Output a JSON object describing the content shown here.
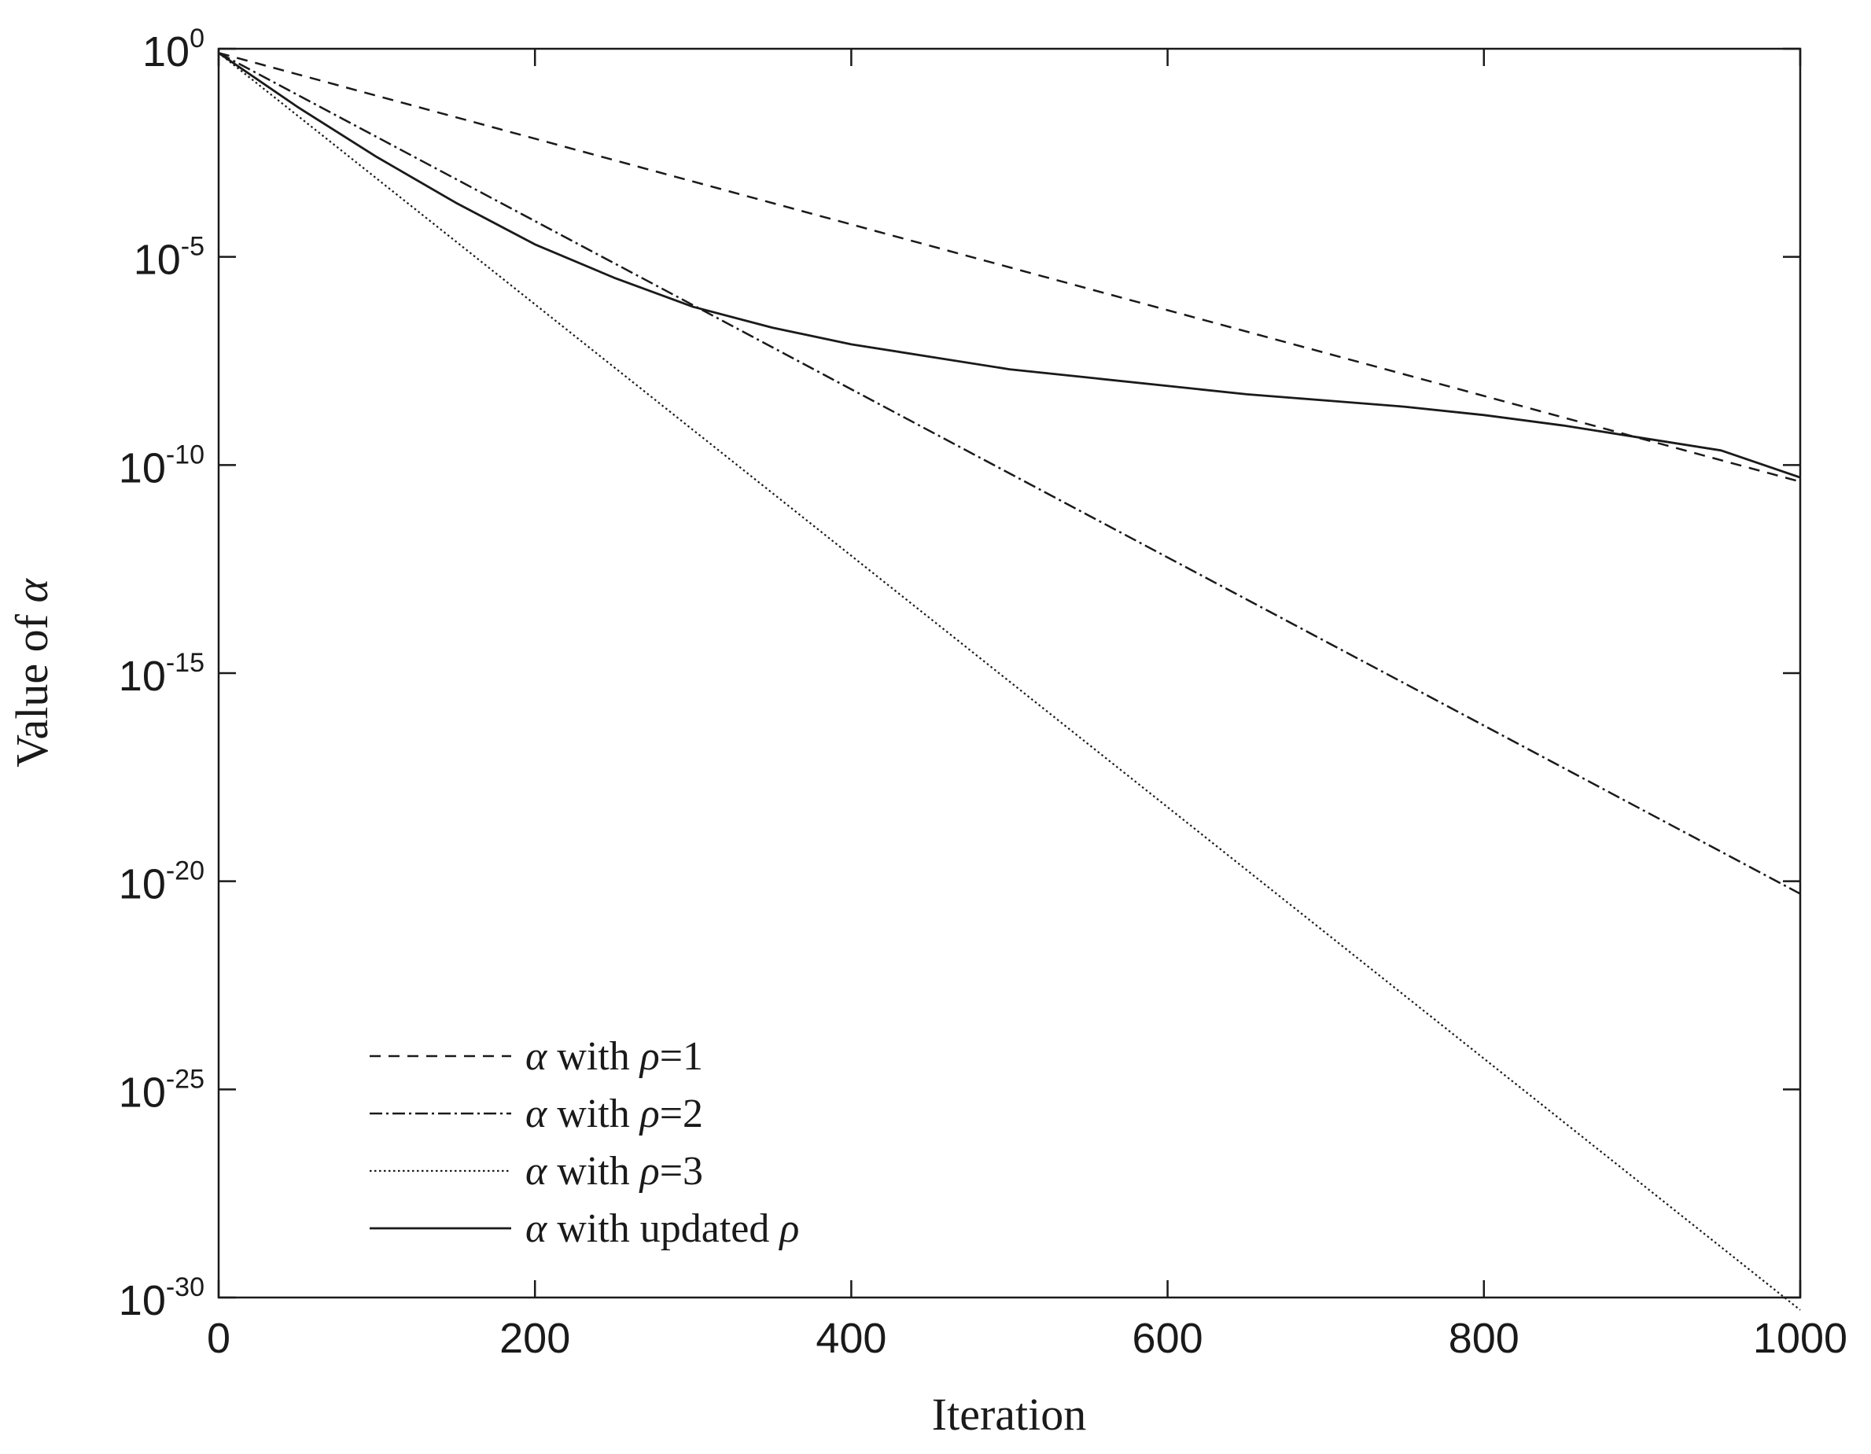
{
  "chart_data": {
    "type": "line",
    "title": "",
    "xlabel": "Iteration",
    "ylabel_prefix": "Value of ",
    "ylabel_symbol": "α",
    "xlim": [
      0,
      1000
    ],
    "ylim_exponent": [
      -30,
      0
    ],
    "yscale": "log",
    "grid": false,
    "legend_position": "bottom-left",
    "x_ticks": [
      "0",
      "200",
      "400",
      "600",
      "800",
      "1000"
    ],
    "y_tick_base": "10",
    "y_tick_exponents": [
      "0",
      "-5",
      "-10",
      "-15",
      "-20",
      "-25",
      "-30"
    ],
    "line_color": "#1a1a1a",
    "series": [
      {
        "legend_symbol": "α",
        "legend_text": " with ",
        "legend_param": "ρ",
        "legend_suffix": "=1",
        "style": "dashed",
        "x": [
          0,
          1000
        ],
        "log10_y": [
          -0.1,
          -10.4
        ]
      },
      {
        "legend_symbol": "α",
        "legend_text": " with ",
        "legend_param": "ρ",
        "legend_suffix": "=2",
        "style": "dashdot",
        "x": [
          0,
          1000
        ],
        "log10_y": [
          -0.1,
          -20.3
        ]
      },
      {
        "legend_symbol": "α",
        "legend_text": " with ",
        "legend_param": "ρ",
        "legend_suffix": "=3",
        "style": "dotted",
        "x": [
          0,
          1000
        ],
        "log10_y": [
          -0.1,
          -30.3
        ]
      },
      {
        "legend_symbol": "α",
        "legend_text": " with updated ",
        "legend_param": "ρ",
        "legend_suffix": "",
        "style": "solid",
        "x": [
          0,
          50,
          100,
          150,
          200,
          250,
          300,
          350,
          400,
          450,
          500,
          550,
          600,
          650,
          700,
          750,
          800,
          850,
          900,
          950,
          1000
        ],
        "log10_y": [
          -0.1,
          -1.4,
          -2.6,
          -3.7,
          -4.7,
          -5.5,
          -6.2,
          -6.7,
          -7.1,
          -7.4,
          -7.7,
          -7.9,
          -8.1,
          -8.3,
          -8.45,
          -8.6,
          -8.8,
          -9.05,
          -9.35,
          -9.65,
          -10.3
        ]
      }
    ]
  }
}
